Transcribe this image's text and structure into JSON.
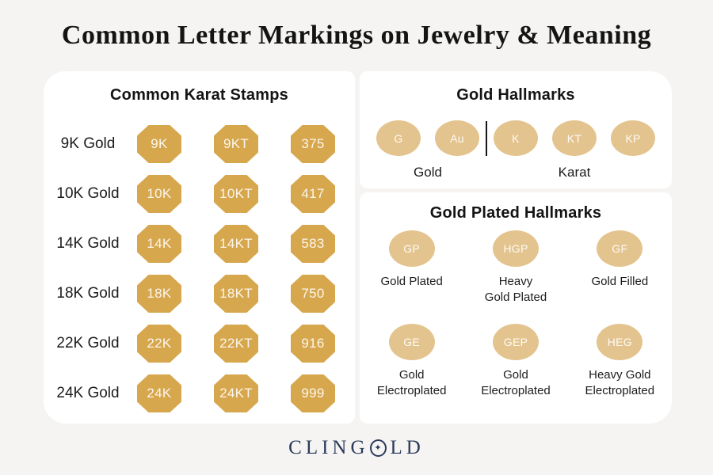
{
  "title": "Common Letter Markings on Jewelry & Meaning",
  "karat": {
    "heading": "Common Karat Stamps",
    "rows": [
      {
        "label": "9K Gold",
        "stamps": [
          "9K",
          "9KT",
          "375"
        ]
      },
      {
        "label": "10K Gold",
        "stamps": [
          "10K",
          "10KT",
          "417"
        ]
      },
      {
        "label": "14K Gold",
        "stamps": [
          "14K",
          "14KT",
          "583"
        ]
      },
      {
        "label": "18K Gold",
        "stamps": [
          "18K",
          "18KT",
          "750"
        ]
      },
      {
        "label": "22K Gold",
        "stamps": [
          "22K",
          "22KT",
          "916"
        ]
      },
      {
        "label": "24K Gold",
        "stamps": [
          "24K",
          "24KT",
          "999"
        ]
      }
    ]
  },
  "hallmarks": {
    "heading": "Gold Hallmarks",
    "gold_group": {
      "label": "Gold",
      "marks": [
        "G",
        "Au"
      ]
    },
    "karat_group": {
      "label": "Karat",
      "marks": [
        "K",
        "KT",
        "KP"
      ]
    }
  },
  "plated": {
    "heading": "Gold Plated Hallmarks",
    "items": [
      {
        "mark": "GP",
        "label": "Gold Plated"
      },
      {
        "mark": "HGP",
        "label": "Heavy\nGold Plated"
      },
      {
        "mark": "GF",
        "label": "Gold Filled"
      },
      {
        "mark": "GE",
        "label": "Gold\nElectroplated"
      },
      {
        "mark": "GEP",
        "label": "Gold\nElectroplated"
      },
      {
        "mark": "HEG",
        "label": "Heavy Gold\nElectroplated"
      }
    ]
  },
  "brand": {
    "name": "CLINGOLD",
    "logo_left": "CLING",
    "logo_star": "✦",
    "logo_right": "LD"
  },
  "colors": {
    "background": "#F5F4F2",
    "card": "#FFFFFF",
    "stamp_octagon": "#D7A74E",
    "stamp_ellipse": "#E4C48E",
    "stamp_text": "#FBF6EA",
    "heading_text": "#141414",
    "logo_navy": "#2B3A5C"
  }
}
